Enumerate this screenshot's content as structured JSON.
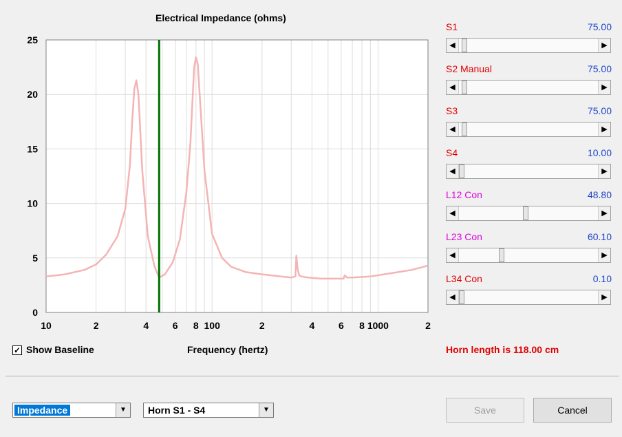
{
  "chart_data": {
    "type": "line",
    "title": "Electrical Impedance (ohms)",
    "xlabel": "Frequency (hertz)",
    "ylabel": "",
    "xscale": "log",
    "xlim": [
      10,
      2000
    ],
    "ylim": [
      0,
      25
    ],
    "grid": true,
    "yticks": [
      "0",
      "5",
      "10",
      "15",
      "20",
      "25"
    ],
    "xticks": [
      {
        "value": 10,
        "label": "10"
      },
      {
        "value": 20,
        "label": "2"
      },
      {
        "value": 40,
        "label": "4"
      },
      {
        "value": 60,
        "label": "6"
      },
      {
        "value": 80,
        "label": "8"
      },
      {
        "value": 100,
        "label": "100"
      },
      {
        "value": 200,
        "label": "2"
      },
      {
        "value": 400,
        "label": "4"
      },
      {
        "value": 600,
        "label": "6"
      },
      {
        "value": 800,
        "label": "8"
      },
      {
        "value": 1000,
        "label": "1000"
      },
      {
        "value": 2000,
        "label": "2"
      }
    ],
    "marker_x": 48,
    "series": [
      {
        "color": "#f4b4b4",
        "x": [
          10,
          13,
          17,
          20,
          23,
          27,
          30,
          32,
          33,
          34,
          35,
          36,
          38,
          41,
          45,
          48,
          52,
          58,
          64,
          70,
          74,
          76,
          78,
          80,
          82,
          85,
          90,
          100,
          115,
          130,
          160,
          200,
          260,
          300,
          318,
          322,
          328,
          335,
          345,
          380,
          450,
          550,
          620,
          630,
          650,
          700,
          900,
          1200,
          1600,
          2000
        ],
        "y": [
          3.3,
          3.5,
          3.9,
          4.4,
          5.3,
          7.0,
          9.5,
          13.5,
          17.5,
          20.5,
          21.3,
          20.0,
          13.0,
          7.0,
          4.2,
          3.2,
          3.5,
          4.6,
          6.7,
          11.0,
          15.5,
          19.0,
          22.5,
          23.4,
          22.8,
          19.0,
          13.0,
          7.2,
          5.0,
          4.2,
          3.7,
          3.5,
          3.3,
          3.2,
          3.3,
          5.2,
          4.0,
          3.4,
          3.3,
          3.2,
          3.1,
          3.1,
          3.1,
          3.4,
          3.2,
          3.2,
          3.3,
          3.6,
          3.9,
          4.3
        ]
      }
    ]
  },
  "sliders": [
    {
      "label": "S1",
      "value": "75.00",
      "color": "#e00000",
      "fraction": 0.02
    },
    {
      "label": "S2 Manual",
      "value": "75.00",
      "color": "#e00000",
      "fraction": 0.02
    },
    {
      "label": "S3",
      "value": "75.00",
      "color": "#e00000",
      "fraction": 0.02
    },
    {
      "label": "S4",
      "value": "10.00",
      "color": "#e00000",
      "fraction": 0.0
    },
    {
      "label": "L12 Con",
      "value": "48.80",
      "color": "#e000e0",
      "fraction": 0.48
    },
    {
      "label": "L23 Con",
      "value": "60.10",
      "color": "#e000e0",
      "fraction": 0.3
    },
    {
      "label": "L34 Con",
      "value": "0.10",
      "color": "#e00000",
      "fraction": 0.0
    }
  ],
  "baseline": {
    "label": "Show Baseline",
    "checked": true
  },
  "horn_length": "Horn length is 118.00 cm",
  "combo_view": "Impedance",
  "combo_horn": "Horn S1 - S4",
  "save_label": "Save",
  "cancel_label": "Cancel",
  "check_glyph": "✓"
}
